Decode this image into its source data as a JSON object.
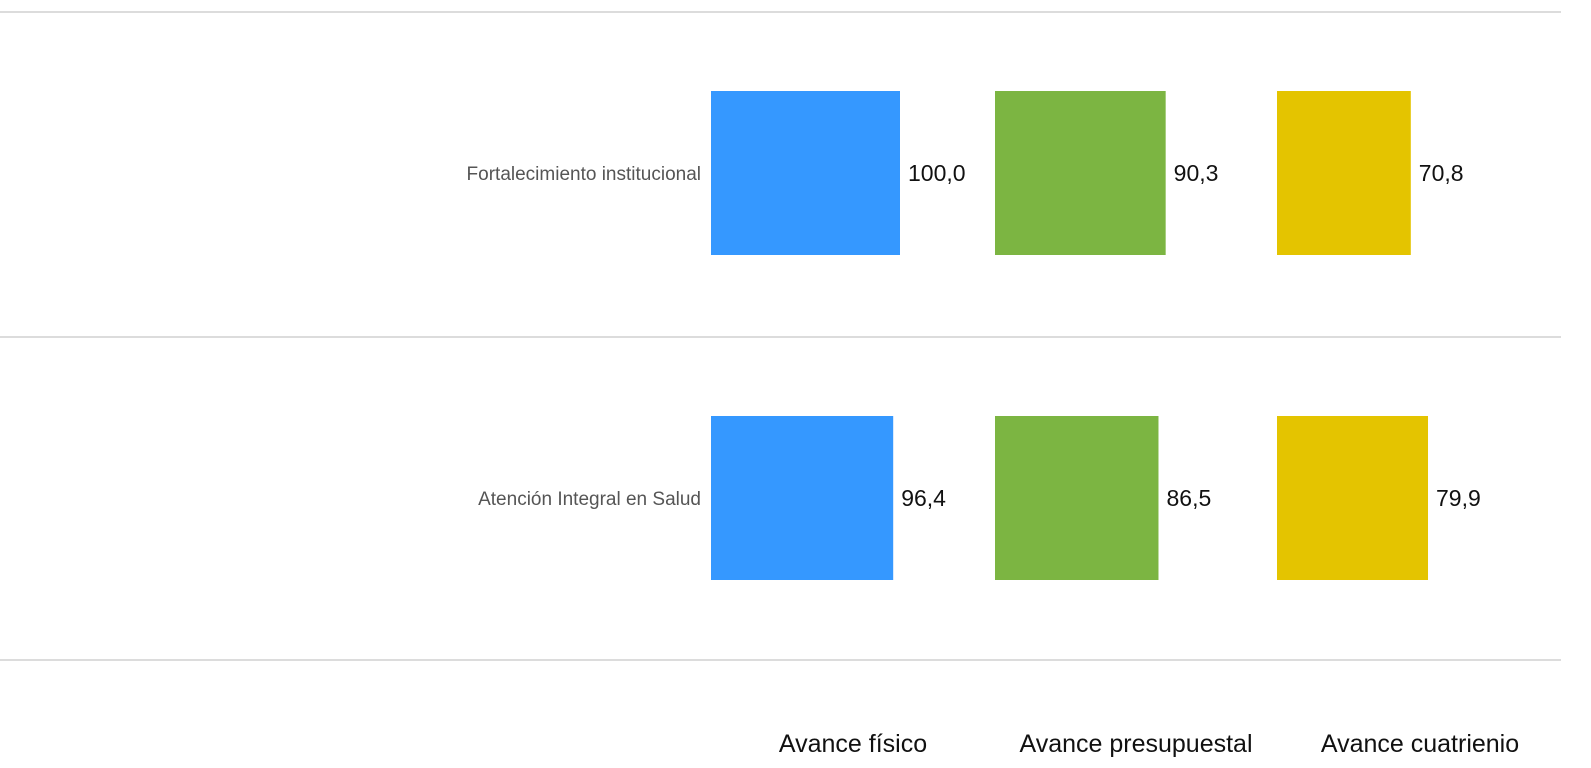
{
  "chart_data": {
    "type": "bar",
    "orientation": "horizontal",
    "layout": "small-multiples",
    "categories": [
      "Fortalecimiento institucional",
      "Atención Integral en Salud"
    ],
    "series": [
      {
        "name": "Avance físico",
        "values": [
          100.0,
          96.4
        ],
        "color": "#3598ff"
      },
      {
        "name": "Avance presupuestal",
        "values": [
          90.3,
          86.5
        ],
        "color": "#7cb542"
      },
      {
        "name": "Avance cuatrienio",
        "values": [
          70.8,
          79.9
        ],
        "color": "#e4c400"
      }
    ],
    "value_labels": [
      [
        "100,0",
        "96,4"
      ],
      [
        "90,3",
        "86,5"
      ],
      [
        "70,8",
        "79,9"
      ]
    ],
    "xlim": [
      0,
      100
    ],
    "grid": true,
    "legend": "bottom"
  }
}
